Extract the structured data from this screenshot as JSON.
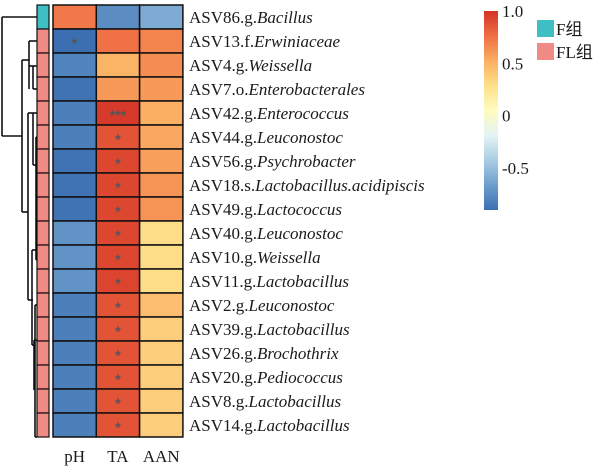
{
  "chart_data": {
    "type": "heatmap",
    "title": "",
    "columns": [
      "pH",
      "TA",
      "AAN"
    ],
    "rows": [
      {
        "prefix": "ASV86.g.",
        "taxon": "Bacillus",
        "group": "F组",
        "values": [
          0.72,
          -0.75,
          -0.6
        ],
        "sig": [
          "",
          "",
          ""
        ]
      },
      {
        "prefix": "ASV13.f.",
        "taxon": "Erwiniaceae",
        "group": "FL组",
        "values": [
          -0.9,
          0.75,
          0.68
        ],
        "sig": [
          "*",
          "",
          ""
        ]
      },
      {
        "prefix": "ASV4.g.",
        "taxon": "Weissella",
        "group": "FL组",
        "values": [
          -0.8,
          0.5,
          0.65
        ],
        "sig": [
          "",
          "",
          ""
        ]
      },
      {
        "prefix": "ASV7.o.",
        "taxon": "Enterobacterales",
        "group": "FL组",
        "values": [
          -0.88,
          0.6,
          0.6
        ],
        "sig": [
          "",
          "",
          ""
        ]
      },
      {
        "prefix": "ASV42.g.",
        "taxon": "Enterococcus",
        "group": "FL组",
        "values": [
          -0.82,
          0.97,
          0.52
        ],
        "sig": [
          "",
          "***",
          ""
        ]
      },
      {
        "prefix": "ASV44.g.",
        "taxon": "Leuconostoc",
        "group": "FL组",
        "values": [
          -0.82,
          0.87,
          0.55
        ],
        "sig": [
          "",
          "*",
          ""
        ]
      },
      {
        "prefix": "ASV56.g.",
        "taxon": "Psychrobacter",
        "group": "FL组",
        "values": [
          -0.88,
          0.92,
          0.58
        ],
        "sig": [
          "",
          "*",
          ""
        ]
      },
      {
        "prefix": "ASV18.s.",
        "taxon": "Lactobacillus.acidipiscis",
        "group": "FL组",
        "values": [
          -0.88,
          0.92,
          0.62
        ],
        "sig": [
          "",
          "*",
          ""
        ]
      },
      {
        "prefix": "ASV49.g.",
        "taxon": "Lactococcus",
        "group": "FL组",
        "values": [
          -0.88,
          0.92,
          0.62
        ],
        "sig": [
          "",
          "*",
          ""
        ]
      },
      {
        "prefix": "ASV40.g.",
        "taxon": "Leuconostoc",
        "group": "FL组",
        "values": [
          -0.72,
          0.92,
          0.3
        ],
        "sig": [
          "",
          "*",
          ""
        ]
      },
      {
        "prefix": "ASV10.g.",
        "taxon": "Weissella",
        "group": "FL组",
        "values": [
          -0.72,
          0.92,
          0.3
        ],
        "sig": [
          "",
          "*",
          ""
        ]
      },
      {
        "prefix": "ASV11.g.",
        "taxon": "Lactobacillus",
        "group": "FL",
        "values": [
          -0.72,
          0.93,
          0.3
        ],
        "sig": [
          "",
          "*",
          ""
        ]
      },
      {
        "prefix": "ASV2.g.",
        "taxon": "Leuconostoc",
        "group": "FL组",
        "values": [
          -0.82,
          0.87,
          0.45
        ],
        "sig": [
          "",
          "*",
          ""
        ]
      },
      {
        "prefix": "ASV39.g.",
        "taxon": "Lactobacillus",
        "group": "FL组",
        "values": [
          -0.82,
          0.87,
          0.38
        ],
        "sig": [
          "",
          "*",
          ""
        ]
      },
      {
        "prefix": "ASV26.g.",
        "taxon": "Brochothrix",
        "group": "FL组",
        "values": [
          -0.82,
          0.87,
          0.38
        ],
        "sig": [
          "",
          "*",
          ""
        ]
      },
      {
        "prefix": "ASV20.g.",
        "taxon": "Pediococcus",
        "group": "FL组",
        "values": [
          -0.82,
          0.87,
          0.38
        ],
        "sig": [
          "",
          "*",
          ""
        ]
      },
      {
        "prefix": "ASV8.g.",
        "taxon": "Lactobacillus",
        "group": "FL组",
        "values": [
          -0.82,
          0.87,
          0.38
        ],
        "sig": [
          "",
          "*",
          ""
        ]
      },
      {
        "prefix": "ASV14.g.",
        "taxon": "Lactobacillus",
        "group": "FL组",
        "values": [
          -0.82,
          0.87,
          0.38
        ],
        "sig": [
          "",
          "*",
          ""
        ]
      }
    ],
    "colorbar": {
      "range": [
        -0.9,
        1.0
      ],
      "ticks": [
        {
          "value": 1.0,
          "label": "1.0"
        },
        {
          "value": 0.5,
          "label": "0.5"
        },
        {
          "value": 0,
          "label": "0"
        },
        {
          "value": -0.5,
          "label": "-0.5"
        }
      ],
      "colors_low_to_high": [
        "#3c6fb2",
        "#6d9fcd",
        "#a9cde3",
        "#e4f3f5",
        "#fefcbf",
        "#fde089",
        "#fbae62",
        "#ef6e44",
        "#d43326"
      ]
    },
    "group_legend": [
      {
        "label": "F组",
        "color": "#3dbfc4"
      },
      {
        "label": "FL组",
        "color": "#ef8a85"
      }
    ],
    "legend_position": "top-right",
    "grid": false
  }
}
